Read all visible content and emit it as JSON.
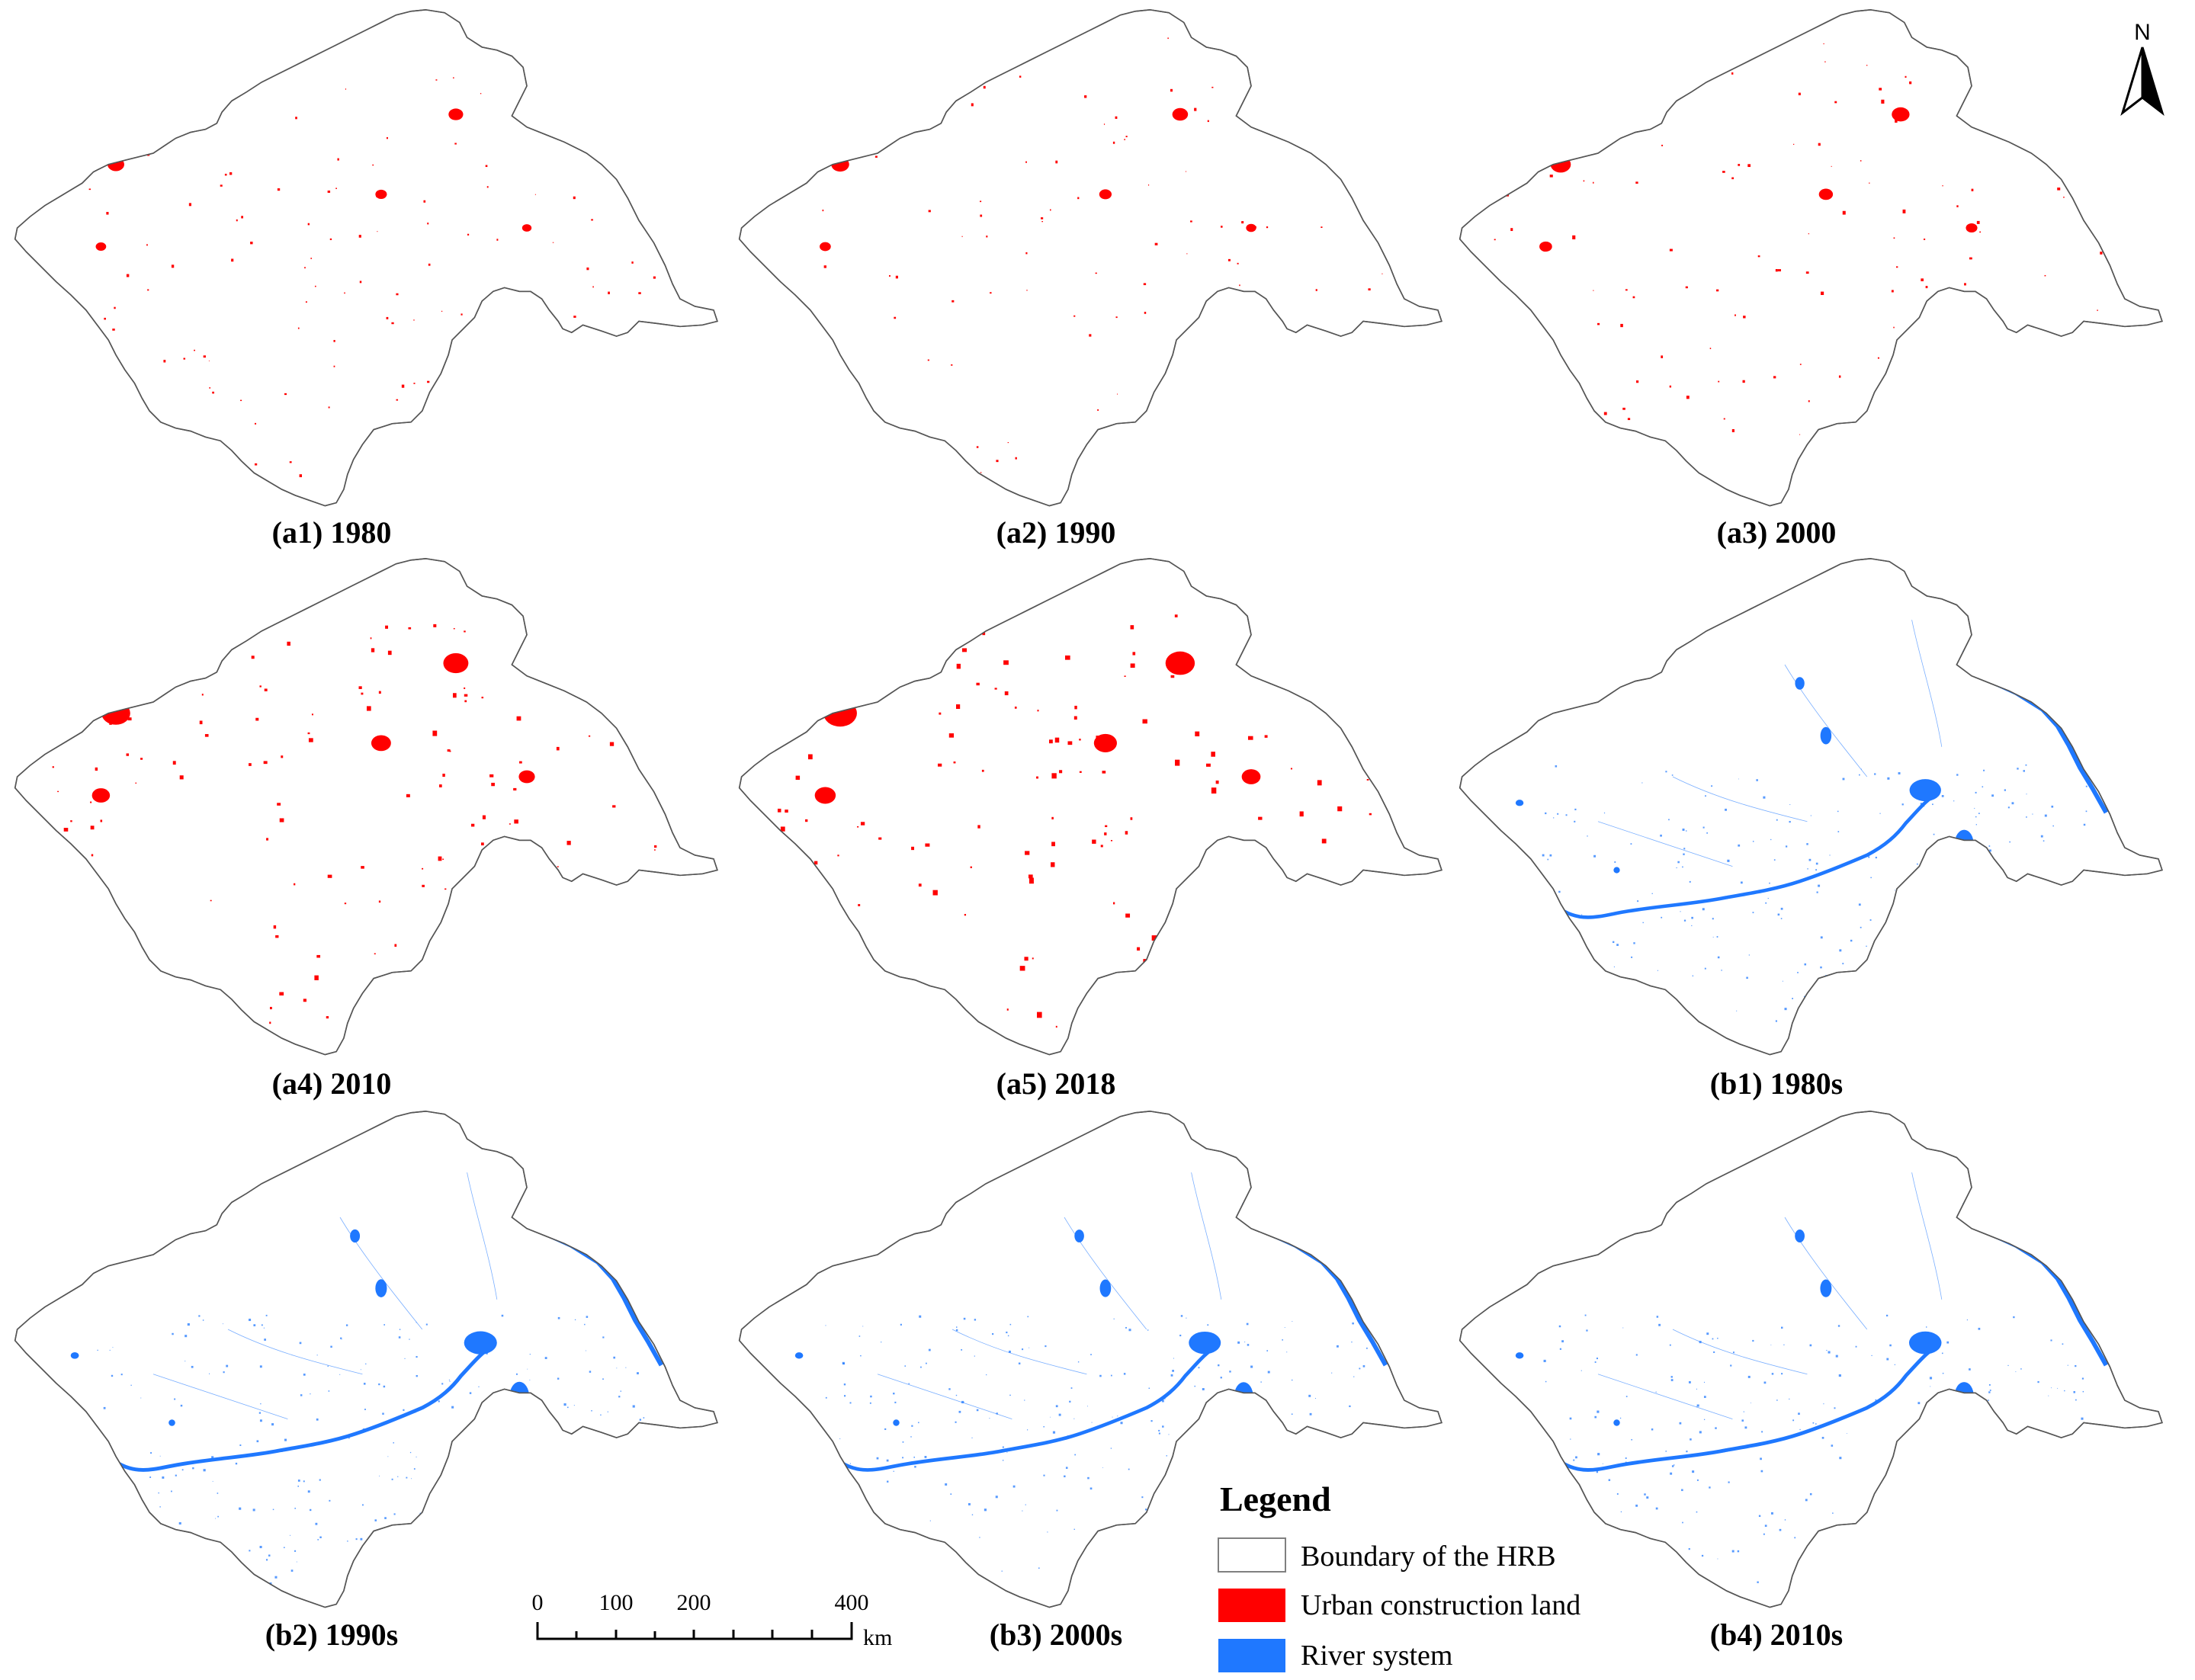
{
  "panels": [
    {
      "id": "a1",
      "caption": "(a1) 1980",
      "layer": "urban",
      "level": 0.3
    },
    {
      "id": "a2",
      "caption": "(a2) 1990",
      "layer": "urban",
      "level": 0.35
    },
    {
      "id": "a3",
      "caption": "(a3) 2000",
      "layer": "urban",
      "level": 0.45
    },
    {
      "id": "a4",
      "caption": "(a4) 2010",
      "layer": "urban",
      "level": 0.8
    },
    {
      "id": "a5",
      "caption": "(a5) 2018",
      "layer": "urban",
      "level": 1.0
    },
    {
      "id": "b1",
      "caption": "(b1) 1980s",
      "layer": "river",
      "level": 0.85
    },
    {
      "id": "b2",
      "caption": "(b2) 1990s",
      "layer": "river",
      "level": 1.0
    },
    {
      "id": "b3",
      "caption": "(b3) 2000s",
      "layer": "river",
      "level": 0.9
    },
    {
      "id": "b4",
      "caption": "(b4) 2010s",
      "layer": "river",
      "level": 0.95
    }
  ],
  "legend": {
    "title": "Legend",
    "items": [
      {
        "label": "Boundary of the HRB",
        "color": "#ffffff",
        "border": "#808080"
      },
      {
        "label": "Urban construction land",
        "color": "#ff0000",
        "border": "#ff0000"
      },
      {
        "label": "River system",
        "color": "#1f78ff",
        "border": "#1f78ff"
      }
    ]
  },
  "scale_bar": {
    "ticks": [
      "0",
      "100",
      "200",
      "400"
    ],
    "unit": "km"
  },
  "north_arrow": {
    "label": "N",
    "icon": "north-arrow-icon"
  },
  "colors": {
    "urban": "#ff0000",
    "river": "#1f78ff",
    "boundary": "#555555"
  }
}
